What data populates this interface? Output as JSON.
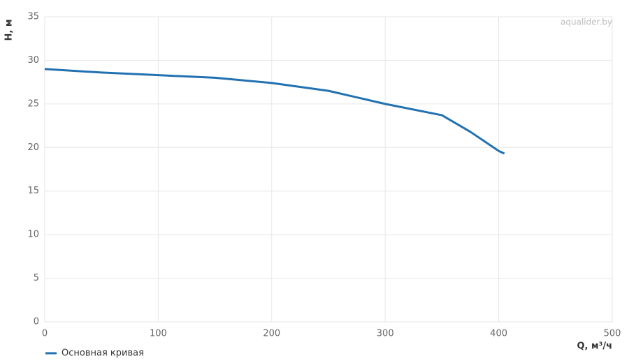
{
  "chart_data": {
    "type": "line",
    "x_label": "Q, м³/ч",
    "y_label": "H, м",
    "watermark": "aqualider.by",
    "x": [
      0,
      50,
      100,
      150,
      200,
      250,
      300,
      350,
      375,
      400,
      405
    ],
    "series": [
      {
        "name": "Основная кривая",
        "color": "#2271b1",
        "values": [
          29.0,
          28.6,
          28.3,
          28.0,
          27.4,
          26.5,
          25.0,
          23.7,
          21.8,
          19.6,
          19.3
        ]
      }
    ],
    "xlim": [
      0,
      500
    ],
    "xticks": [
      0,
      100,
      200,
      300,
      400,
      500
    ],
    "ylim": [
      0,
      35
    ],
    "yticks": [
      0,
      5,
      10,
      15,
      20,
      25,
      30,
      35
    ],
    "grid": true,
    "legend": "bottom-left"
  }
}
